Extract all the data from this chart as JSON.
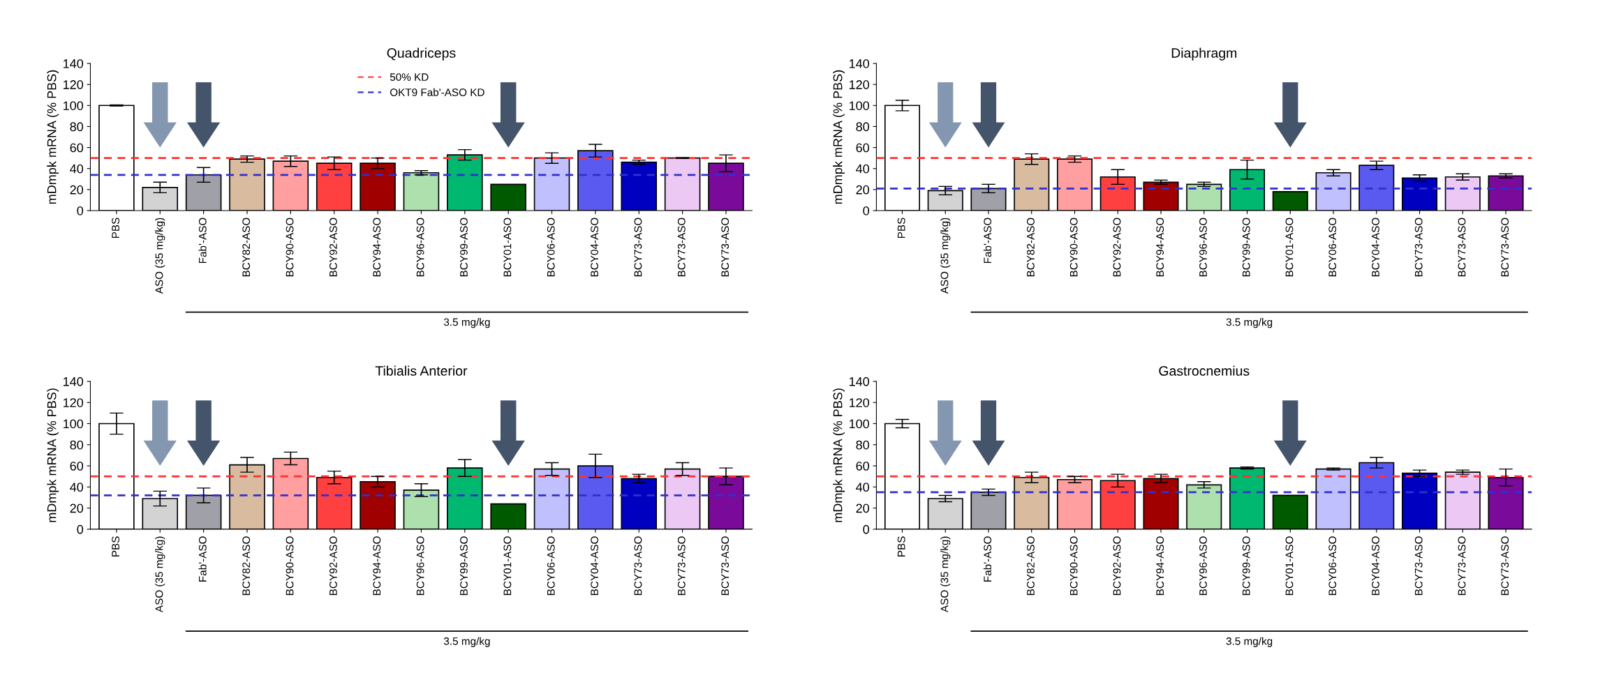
{
  "chart_data": [
    {
      "type": "bar",
      "title": "Quadriceps",
      "ylabel": "mDmpk mRNA (% PBS)",
      "categories": [
        "PBS",
        "ASO (35 mg/kg)",
        "Fab'-ASO",
        "BCY82-ASO",
        "BCY90-ASO",
        "BCY92-ASO",
        "BCY94-ASO",
        "BCY96-ASO",
        "BCY99-ASO",
        "BCY01-ASO",
        "BCY06-ASO",
        "BCY04-ASO",
        "BCY73-ASO",
        "BCY73-ASO",
        "BCY73-ASO"
      ],
      "values": [
        100,
        22,
        34,
        49,
        47,
        45,
        45,
        36,
        53,
        25,
        50,
        57,
        46,
        50,
        45
      ],
      "errors": [
        0.5,
        5,
        7,
        3,
        5,
        6,
        5,
        2,
        5,
        null,
        5,
        6,
        2,
        0.5,
        8
      ],
      "colors": [
        "#ffffff",
        "#d3d3d3",
        "#a0a0a8",
        "#d9bba0",
        "#ff9f9f",
        "#ff4040",
        "#a00000",
        "#aee0ae",
        "#00b870",
        "#005a00",
        "#c0c0ff",
        "#5a5af0",
        "#0000c0",
        "#ecc8f5",
        "#7a0a9a"
      ],
      "ylim": [
        0,
        140
      ],
      "yticks": [
        0,
        20,
        40,
        60,
        80,
        100,
        120,
        140
      ],
      "ref_lines": [
        {
          "axis": "y",
          "value": 50,
          "label": "50% KD",
          "color": "#ff3030",
          "line_style": "dashed"
        },
        {
          "axis": "y",
          "value": 34,
          "label": "OKT9 Fab'-ASO KD",
          "color": "#3030d0",
          "line_style": "dashed"
        }
      ],
      "legend": "top",
      "grid": false,
      "annotations": [
        "3.5 mg/kg"
      ]
    },
    {
      "type": "bar",
      "title": "Diaphragm",
      "ylabel": "mDmpk mRNA (% PBS)",
      "categories": [
        "PBS",
        "ASO (35 mg/kg)",
        "Fab'-ASO",
        "BCY82-ASO",
        "BCY90-ASO",
        "BCY92-ASO",
        "BCY94-ASO",
        "BCY96-ASO",
        "BCY99-ASO",
        "BCY01-ASO",
        "BCY06-ASO",
        "BCY04-ASO",
        "BCY73-ASO",
        "BCY73-ASO",
        "BCY73-ASO"
      ],
      "values": [
        100,
        19,
        21,
        49,
        49,
        32,
        27,
        25,
        39,
        18,
        36,
        43,
        31,
        32,
        33
      ],
      "errors": [
        5,
        4,
        4,
        5,
        3,
        7,
        2,
        2,
        9,
        null,
        3,
        4,
        3,
        3,
        2
      ],
      "colors": [
        "#ffffff",
        "#d3d3d3",
        "#a0a0a8",
        "#d9bba0",
        "#ff9f9f",
        "#ff4040",
        "#a00000",
        "#aee0ae",
        "#00b870",
        "#005a00",
        "#c0c0ff",
        "#5a5af0",
        "#0000c0",
        "#ecc8f5",
        "#7a0a9a"
      ],
      "ylim": [
        0,
        140
      ],
      "yticks": [
        0,
        20,
        40,
        60,
        80,
        100,
        120,
        140
      ],
      "ref_lines": [
        {
          "axis": "y",
          "value": 50,
          "color": "#ff3030",
          "line_style": "dashed"
        },
        {
          "axis": "y",
          "value": 21,
          "color": "#3030d0",
          "line_style": "dashed"
        }
      ],
      "grid": false,
      "annotations": [
        "3.5 mg/kg"
      ]
    },
    {
      "type": "bar",
      "title": "Tibialis Anterior",
      "ylabel": "mDmpk mRNA (% PBS)",
      "categories": [
        "PBS",
        "ASO (35 mg/kg)",
        "Fab'-ASO",
        "BCY82-ASO",
        "BCY90-ASO",
        "BCY92-ASO",
        "BCY94-ASO",
        "BCY96-ASO",
        "BCY99-ASO",
        "BCY01-ASO",
        "BCY06-ASO",
        "BCY04-ASO",
        "BCY73-ASO",
        "BCY73-ASO",
        "BCY73-ASO"
      ],
      "values": [
        100,
        29,
        32,
        61,
        67,
        49,
        45,
        37,
        58,
        24,
        57,
        60,
        48,
        57,
        50
      ],
      "errors": [
        10,
        7,
        7,
        7,
        6,
        6,
        5,
        6,
        8,
        null,
        6,
        11,
        4,
        6,
        8
      ],
      "colors": [
        "#ffffff",
        "#d3d3d3",
        "#a0a0a8",
        "#d9bba0",
        "#ff9f9f",
        "#ff4040",
        "#a00000",
        "#aee0ae",
        "#00b870",
        "#005a00",
        "#c0c0ff",
        "#5a5af0",
        "#0000c0",
        "#ecc8f5",
        "#7a0a9a"
      ],
      "ylim": [
        0,
        140
      ],
      "yticks": [
        0,
        20,
        40,
        60,
        80,
        100,
        120,
        140
      ],
      "ref_lines": [
        {
          "axis": "y",
          "value": 50,
          "color": "#ff3030",
          "line_style": "dashed"
        },
        {
          "axis": "y",
          "value": 32,
          "color": "#3030d0",
          "line_style": "dashed"
        }
      ],
      "grid": false,
      "annotations": [
        "3.5 mg/kg"
      ]
    },
    {
      "type": "bar",
      "title": "Gastrocnemius",
      "ylabel": "mDmpk mRNA (% PBS)",
      "categories": [
        "PBS",
        "ASO (35 mg/kg)",
        "Fab'-ASO",
        "BCY82-ASO",
        "BCY90-ASO",
        "BCY92-ASO",
        "BCY94-ASO",
        "BCY96-ASO",
        "BCY99-ASO",
        "BCY01-ASO",
        "BCY06-ASO",
        "BCY04-ASO",
        "BCY73-ASO",
        "BCY73-ASO",
        "BCY73-ASO"
      ],
      "values": [
        100,
        29,
        35,
        49,
        47,
        46,
        48,
        42,
        58,
        32,
        57,
        63,
        53,
        54,
        49
      ],
      "errors": [
        4,
        3,
        3,
        5,
        3,
        6,
        4,
        3,
        1,
        null,
        1,
        5,
        3,
        2,
        8
      ],
      "colors": [
        "#ffffff",
        "#d3d3d3",
        "#a0a0a8",
        "#d9bba0",
        "#ff9f9f",
        "#ff4040",
        "#a00000",
        "#aee0ae",
        "#00b870",
        "#005a00",
        "#c0c0ff",
        "#5a5af0",
        "#0000c0",
        "#ecc8f5",
        "#7a0a9a"
      ],
      "ylim": [
        0,
        140
      ],
      "yticks": [
        0,
        20,
        40,
        60,
        80,
        100,
        120,
        140
      ],
      "ref_lines": [
        {
          "axis": "y",
          "value": 50,
          "color": "#ff3030",
          "line_style": "dashed"
        },
        {
          "axis": "y",
          "value": 35,
          "color": "#3030d0",
          "line_style": "dashed"
        }
      ],
      "grid": false,
      "annotations": [
        "3.5 mg/kg"
      ]
    }
  ]
}
